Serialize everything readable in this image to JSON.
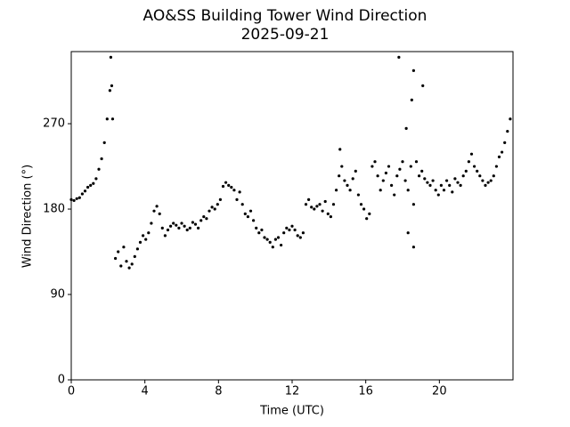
{
  "chart_data": {
    "type": "scatter",
    "title": "AO&SS Building Tower Wind Direction",
    "subtitle": "2025-09-21",
    "x_label": "Time (UTC)",
    "y_label": "Wind Direction (°)",
    "x": [
      0,
      0.15,
      0.3,
      0.45,
      0.6,
      0.75,
      0.9,
      1.05,
      1.2,
      1.35,
      1.5,
      1.65,
      1.8,
      1.95,
      2.1,
      2.25,
      2.4,
      2.55,
      2.7,
      2.85,
      3,
      3.15,
      3.3,
      3.45,
      3.6,
      3.75,
      3.9,
      4.05,
      4.2,
      4.35,
      4.5,
      4.65,
      4.8,
      4.95,
      5.1,
      5.25,
      5.4,
      5.55,
      5.7,
      5.85,
      6,
      6.15,
      6.3,
      6.45,
      6.6,
      6.75,
      6.9,
      7.05,
      7.2,
      7.35,
      7.5,
      7.65,
      7.8,
      7.95,
      8.1,
      8.25,
      8.4,
      8.55,
      8.7,
      8.85,
      9,
      9.15,
      9.3,
      9.45,
      9.6,
      9.75,
      9.9,
      10.05,
      10.2,
      10.35,
      10.5,
      10.65,
      10.8,
      10.95,
      11.1,
      11.25,
      11.4,
      11.55,
      11.7,
      11.85,
      12,
      12.15,
      12.3,
      12.45,
      12.6,
      12.75,
      12.9,
      13.05,
      13.2,
      13.35,
      13.5,
      13.65,
      13.8,
      13.95,
      14.1,
      14.25,
      14.4,
      14.55,
      14.7,
      14.85,
      15,
      15.15,
      15.3,
      15.45,
      15.6,
      15.75,
      15.9,
      16.05,
      16.2,
      16.35,
      16.5,
      16.65,
      16.8,
      16.95,
      17.1,
      17.25,
      17.4,
      17.55,
      17.7,
      17.85,
      18,
      18.15,
      18.3,
      18.45,
      18.6,
      18.75,
      18.9,
      19.05,
      19.2,
      19.35,
      19.5,
      19.65,
      19.8,
      19.95,
      20.1,
      20.25,
      20.4,
      20.55,
      20.7,
      20.85,
      21,
      21.15,
      21.3,
      21.45,
      21.6,
      21.75,
      21.9,
      22.05,
      22.2,
      22.35,
      22.5,
      22.65,
      22.8,
      22.95,
      23.1,
      23.25,
      23.4,
      23.55,
      23.7,
      23.85,
      2.15,
      2.2,
      17.8,
      18.6,
      18.6,
      19.1,
      18.2,
      18.5,
      14.6,
      18.3
    ],
    "values": [
      190,
      189,
      191,
      192,
      196,
      199,
      203,
      205,
      207,
      212,
      222,
      233,
      250,
      275,
      305,
      275,
      128,
      135,
      120,
      140,
      125,
      118,
      122,
      130,
      138,
      145,
      152,
      148,
      155,
      165,
      178,
      183,
      175,
      160,
      152,
      158,
      162,
      165,
      163,
      160,
      165,
      162,
      158,
      160,
      166,
      164,
      160,
      168,
      172,
      170,
      178,
      182,
      180,
      185,
      190,
      204,
      208,
      205,
      203,
      200,
      190,
      198,
      185,
      175,
      172,
      178,
      168,
      160,
      155,
      158,
      150,
      148,
      145,
      140,
      148,
      150,
      142,
      155,
      160,
      158,
      162,
      158,
      152,
      150,
      155,
      185,
      190,
      182,
      180,
      183,
      185,
      178,
      188,
      175,
      172,
      185,
      200,
      215,
      225,
      210,
      205,
      200,
      212,
      220,
      195,
      185,
      180,
      170,
      175,
      225,
      230,
      215,
      200,
      210,
      218,
      225,
      205,
      195,
      215,
      222,
      230,
      210,
      200,
      225,
      185,
      230,
      215,
      220,
      212,
      208,
      205,
      210,
      200,
      195,
      205,
      200,
      210,
      205,
      198,
      212,
      208,
      205,
      215,
      220,
      230,
      238,
      225,
      220,
      215,
      210,
      205,
      208,
      210,
      215,
      225,
      235,
      240,
      250,
      262,
      275,
      340,
      310,
      340,
      326,
      140,
      310,
      265,
      295,
      243,
      155
    ],
    "color": "#000000",
    "xlim": [
      0,
      24
    ],
    "xticks": [
      0,
      4,
      8,
      12,
      16,
      20
    ],
    "ylim": [
      0,
      346
    ],
    "yticks": [
      0,
      90,
      180,
      270
    ],
    "grid": false
  }
}
